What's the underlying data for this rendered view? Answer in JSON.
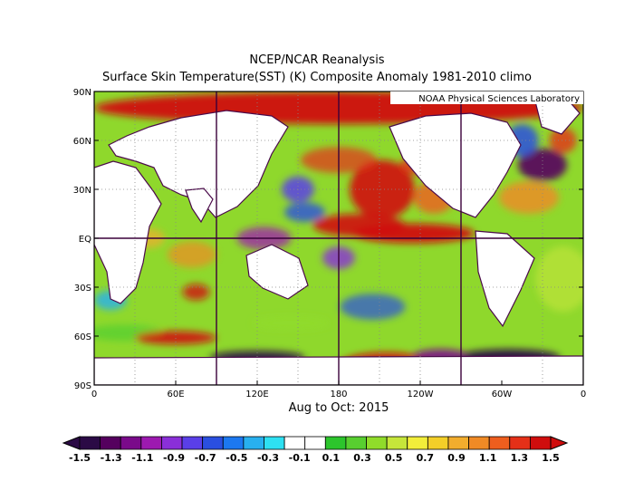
{
  "title_line1": "NCEP/NCAR Reanalysis",
  "title_line2": "Surface Skin Temperature(SST) (K) Composite Anomaly 1981-2010 climo",
  "credit": "NOAA Physical Sciences Laboratory",
  "subtitle": "Aug to Oct: 2015",
  "map": {
    "projection": "equirectangular",
    "lon_range": [
      0,
      360
    ],
    "lat_range": [
      -90,
      90
    ],
    "lat_ticks": [
      {
        "value": 90,
        "label": "90N"
      },
      {
        "value": 60,
        "label": "60N"
      },
      {
        "value": 30,
        "label": "30N"
      },
      {
        "value": 0,
        "label": "EQ"
      },
      {
        "value": -30,
        "label": "30S"
      },
      {
        "value": -60,
        "label": "60S"
      },
      {
        "value": -90,
        "label": "90S"
      }
    ],
    "lon_ticks": [
      {
        "value": 0,
        "label": "0"
      },
      {
        "value": 60,
        "label": "60E"
      },
      {
        "value": 120,
        "label": "120E"
      },
      {
        "value": 180,
        "label": "180"
      },
      {
        "value": 240,
        "label": "120W"
      },
      {
        "value": 300,
        "label": "60W"
      },
      {
        "value": 360,
        "label": "0"
      }
    ],
    "dotted_grid_lons": [
      30,
      60,
      120,
      150,
      210,
      240,
      270,
      330
    ],
    "dotted_grid_lats": [
      -30,
      30,
      60
    ],
    "highlighted_lons": [
      90,
      180,
      270
    ],
    "highlighted_lats": [
      0
    ]
  },
  "colorbar": {
    "labels": [
      "-1.5",
      "-1.3",
      "-1.1",
      "-0.9",
      "-0.7",
      "-0.5",
      "-0.3",
      "-0.1",
      "0.1",
      "0.3",
      "0.5",
      "0.7",
      "0.9",
      "1.1",
      "1.3",
      "1.5"
    ],
    "colors": [
      "#2b0a45",
      "#55005e",
      "#7a0a8a",
      "#9d19b0",
      "#8a2fd8",
      "#5a3fe8",
      "#2a4fe0",
      "#1c78f0",
      "#28b0ef",
      "#2ee0f2",
      "#ffffff",
      "#ffffff",
      "#2cc52c",
      "#58cf30",
      "#90dc2a",
      "#c6e63a",
      "#f2ee3a",
      "#f3cf28",
      "#f2ad2d",
      "#f08a25",
      "#ee5e1e",
      "#e53018",
      "#d00d0d"
    ]
  },
  "anomaly_blobs": [
    {
      "lon": 195,
      "lat": 8,
      "rx": 34,
      "ry": 7,
      "value": 1.5,
      "opacity": 0.9
    },
    {
      "lon": 235,
      "lat": 3,
      "rx": 45,
      "ry": 6,
      "value": 1.5,
      "opacity": 0.95
    },
    {
      "lon": 212,
      "lat": 30,
      "rx": 24,
      "ry": 18,
      "value": 1.4,
      "opacity": 0.9
    },
    {
      "lon": 180,
      "lat": 48,
      "rx": 28,
      "ry": 8,
      "value": 1.3,
      "opacity": 0.7
    },
    {
      "lon": 150,
      "lat": 30,
      "rx": 12,
      "ry": 8,
      "value": -0.8,
      "opacity": 0.85
    },
    {
      "lon": 155,
      "lat": 16,
      "rx": 15,
      "ry": 6,
      "value": -0.6,
      "opacity": 0.8
    },
    {
      "lon": 180,
      "lat": -12,
      "rx": 12,
      "ry": 7,
      "value": -0.9,
      "opacity": 0.8
    },
    {
      "lon": 125,
      "lat": 0,
      "rx": 20,
      "ry": 7,
      "value": -1.0,
      "opacity": 0.75
    },
    {
      "lon": 72,
      "lat": -10,
      "rx": 18,
      "ry": 8,
      "value": 1.1,
      "opacity": 0.7
    },
    {
      "lon": 75,
      "lat": -33,
      "rx": 10,
      "ry": 5,
      "value": 1.4,
      "opacity": 0.8
    },
    {
      "lon": 12,
      "lat": -38,
      "rx": 12,
      "ry": 6,
      "value": -0.4,
      "opacity": 0.8
    },
    {
      "lon": 22,
      "lat": -58,
      "rx": 28,
      "ry": 5,
      "value": 0.3,
      "opacity": 0.8
    },
    {
      "lon": 60,
      "lat": -61,
      "rx": 30,
      "ry": 4,
      "value": 1.5,
      "opacity": 0.9
    },
    {
      "lon": 145,
      "lat": -52,
      "rx": 28,
      "ry": 4,
      "value": 0.4,
      "opacity": 0.8
    },
    {
      "lon": 205,
      "lat": -42,
      "rx": 24,
      "ry": 8,
      "value": -0.6,
      "opacity": 0.7
    },
    {
      "lon": 215,
      "lat": -78,
      "rx": 35,
      "ry": 8,
      "value": 1.5,
      "opacity": 0.9
    },
    {
      "lon": 120,
      "lat": -73,
      "rx": 35,
      "ry": 4,
      "value": -1.4,
      "opacity": 0.9
    },
    {
      "lon": 305,
      "lat": -73,
      "rx": 38,
      "ry": 5,
      "value": -1.5,
      "opacity": 0.95
    },
    {
      "lon": 255,
      "lat": -72,
      "rx": 20,
      "ry": 4,
      "value": -1.2,
      "opacity": 0.9
    },
    {
      "lon": 330,
      "lat": 45,
      "rx": 18,
      "ry": 10,
      "value": -1.3,
      "opacity": 0.9
    },
    {
      "lon": 320,
      "lat": 25,
      "rx": 22,
      "ry": 10,
      "value": 1.1,
      "opacity": 0.8
    },
    {
      "lon": 315,
      "lat": 60,
      "rx": 12,
      "ry": 10,
      "value": -0.7,
      "opacity": 0.85
    },
    {
      "lon": 345,
      "lat": 60,
      "rx": 10,
      "ry": 8,
      "value": 1.3,
      "opacity": 0.8
    },
    {
      "lon": 250,
      "lat": 25,
      "rx": 15,
      "ry": 10,
      "value": 1.2,
      "opacity": 0.8
    },
    {
      "lon": 240,
      "lat": 45,
      "rx": 15,
      "ry": 6,
      "value": 1.3,
      "opacity": 0.8
    },
    {
      "lon": 180,
      "lat": 80,
      "rx": 180,
      "ry": 10,
      "value": 1.5,
      "opacity": 0.95
    },
    {
      "lon": 345,
      "lat": -25,
      "rx": 20,
      "ry": 20,
      "value": 0.5,
      "opacity": 0.6
    },
    {
      "lon": 40,
      "lat": 0,
      "rx": 12,
      "ry": 6,
      "value": 0.9,
      "opacity": 0.7
    }
  ]
}
